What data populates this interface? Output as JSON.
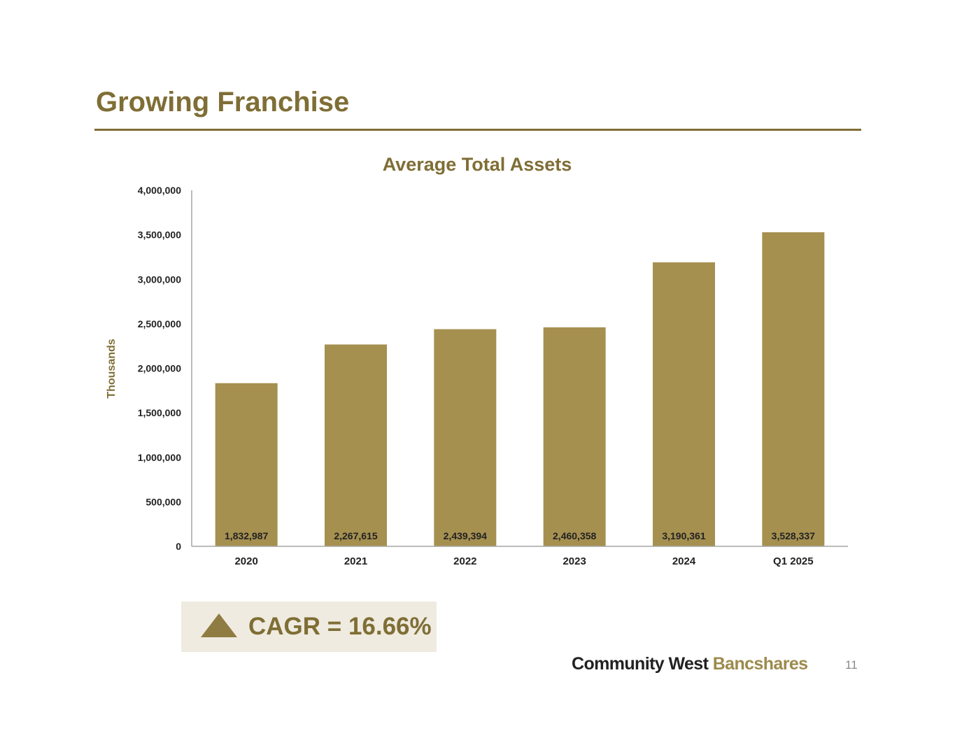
{
  "page": {
    "title": "Growing Franchise",
    "page_number": "11",
    "accent_color": "#7f6e35",
    "bar_color": "#a69050"
  },
  "logo": {
    "part1": "Community West",
    "part2": "Bancshares"
  },
  "cagr": {
    "icon": "up-triangle-icon",
    "text": "CAGR = 16.66%"
  },
  "chart_data": {
    "type": "bar",
    "title": "Average Total Assets",
    "ylabel": "Thousands",
    "xlabel": "",
    "categories": [
      "2020",
      "2021",
      "2022",
      "2023",
      "2024",
      "Q1 2025"
    ],
    "values": [
      1832987,
      2267615,
      2439394,
      2460358,
      3190361,
      3528337
    ],
    "data_labels": [
      "1,832,987",
      "2,267,615",
      "2,439,394",
      "2,460,358",
      "3,190,361",
      "3,528,337"
    ],
    "ylim": [
      0,
      4000000
    ],
    "yticks": [
      0,
      500000,
      1000000,
      1500000,
      2000000,
      2500000,
      3000000,
      3500000,
      4000000
    ],
    "ytick_labels": [
      "0",
      "500,000",
      "1,000,000",
      "1,500,000",
      "2,000,000",
      "2,500,000",
      "3,000,000",
      "3,500,000",
      "4,000,000"
    ],
    "grid": false,
    "legend": "none"
  }
}
